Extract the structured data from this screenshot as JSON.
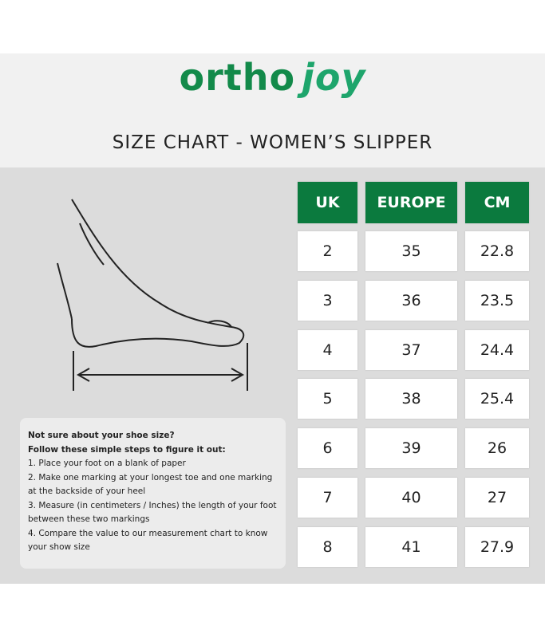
{
  "header": {
    "brand": {
      "first": "ortho",
      "second": "joy"
    },
    "title": "SIZE CHART - WOMEN’S  SLIPPER"
  },
  "table": {
    "columns": [
      "UK",
      "EUROPE",
      "CM"
    ],
    "rows": [
      [
        "2",
        "35",
        "22.8"
      ],
      [
        "3",
        "36",
        "23.5"
      ],
      [
        "4",
        "37",
        "24.4"
      ],
      [
        "5",
        "38",
        "25.4"
      ],
      [
        "6",
        "39",
        "26"
      ],
      [
        "7",
        "40",
        "27"
      ],
      [
        "8",
        "41",
        "27.9"
      ]
    ]
  },
  "instructions": {
    "heading": "Not sure about your shoe size?",
    "subheading": "Follow these simple steps to figure it out:",
    "steps": [
      "1. Place your foot on a blank of paper",
      "2. Make one marking at your longest toe and one marking at the backside of your heel",
      "3. Measure (in centimeters / Inches) the length of your foot between these two markings",
      "4. Compare the value to our measurement chart to know your show size"
    ]
  }
}
